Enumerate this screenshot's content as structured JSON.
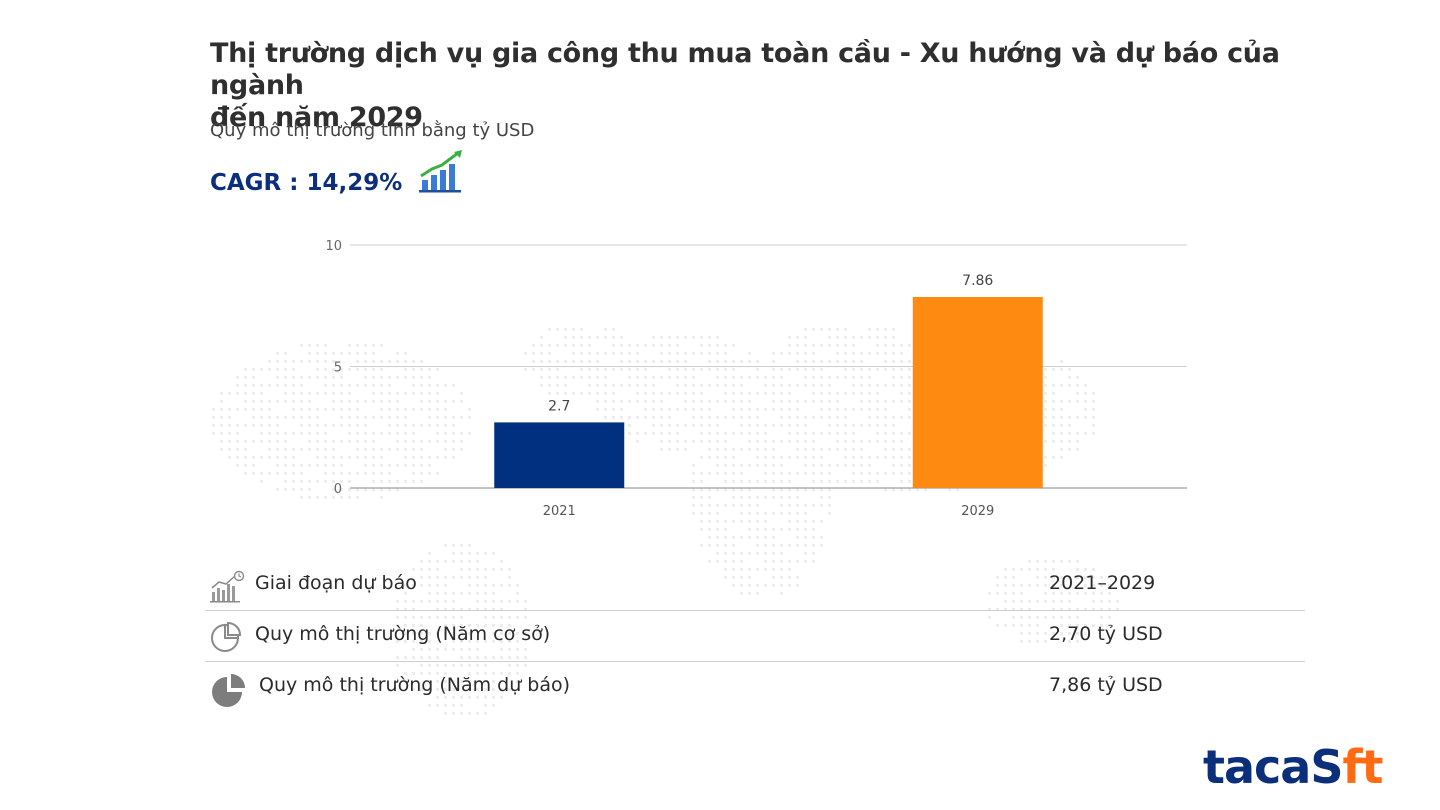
{
  "header": {
    "title_line1": "Thị trường dịch vụ gia công thu mua toàn cầu - Xu hướng và dự báo của ngành",
    "title_line2": "đến năm 2029",
    "subtitle": "Quy mô thị trường tính bằng tỷ USD",
    "cagr": "CAGR : 14,29%"
  },
  "chart_data": {
    "type": "bar",
    "categories": [
      "2021",
      "2029"
    ],
    "values": [
      2.7,
      7.86
    ],
    "value_labels": [
      "2.7",
      "7.86"
    ],
    "bar_colors": [
      "#00307f",
      "#ff8a11"
    ],
    "ylim": [
      0,
      10
    ],
    "yticks": [
      0,
      5,
      10
    ],
    "grid": true,
    "legend": "none"
  },
  "summary": [
    {
      "icon": "bar-chart-clock-icon",
      "label": "Giai đoạn dự báo",
      "value": "2021–2029"
    },
    {
      "icon": "pie-chart-outline-icon",
      "label": "Quy mô thị trường (Năm cơ sở)",
      "value": "2,70 tỷ USD"
    },
    {
      "icon": "pie-chart-filled-icon",
      "label": "Quy mô thị trường (Năm dự báo)",
      "value": "7,86 tỷ USD"
    }
  ],
  "logo": {
    "part1": "taca",
    "part2": "S",
    "part3": "ft",
    "accent": "#ff6a13",
    "brand": "#0b2f7a"
  }
}
